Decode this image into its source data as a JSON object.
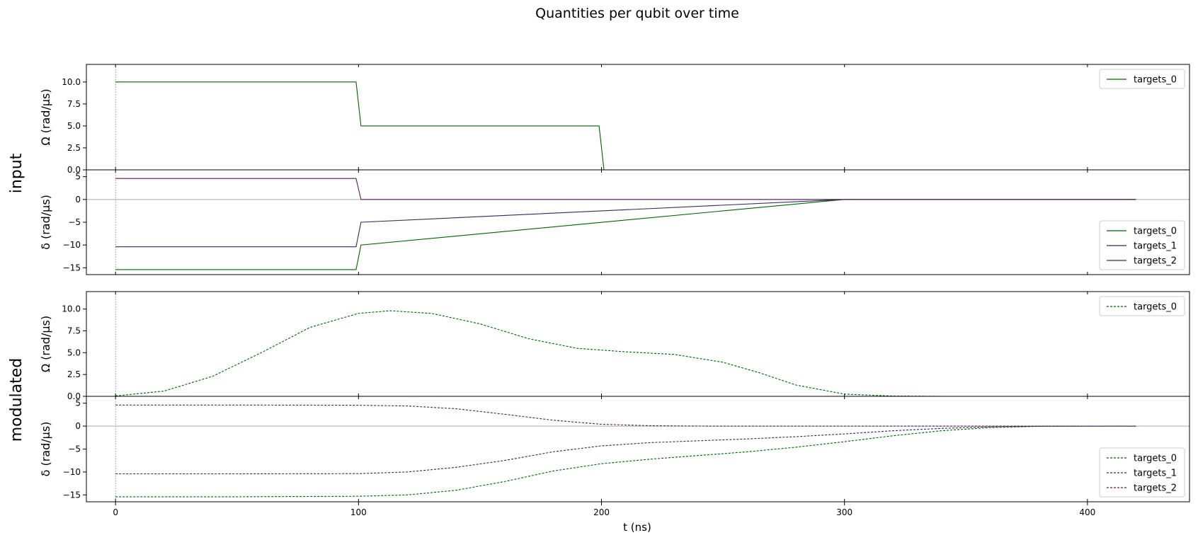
{
  "title": "Quantities per qubit over time",
  "xlabel": "t (ns)",
  "colors": {
    "targets_0": "#006400",
    "targets_1": "#2e2b5f",
    "targets_2": "#5c1a5c"
  },
  "groups": [
    {
      "label": "input"
    },
    {
      "label": "modulated"
    }
  ],
  "chart_data": [
    {
      "type": "line",
      "group": "input",
      "ylabel": "Ω (rad/µs)",
      "xlim": [
        -12,
        442
      ],
      "ylim": [
        0,
        12
      ],
      "yticks": [
        0,
        2.5,
        5,
        7.5,
        10
      ],
      "ytick_labels": [
        "0.0",
        "2.5",
        "5.0",
        "7.5",
        "10.0"
      ],
      "xticks": [
        0,
        100,
        200,
        300,
        400
      ],
      "dashed": false,
      "legend": "upper-right",
      "series": [
        {
          "name": "targets_0",
          "color": "#006400",
          "x": [
            0,
            99,
            101,
            199,
            201,
            420
          ],
          "y": [
            10,
            10,
            5,
            5,
            0,
            0
          ]
        }
      ]
    },
    {
      "type": "line",
      "group": "input",
      "ylabel": "δ (rad/µs)",
      "xlim": [
        -12,
        442
      ],
      "ylim": [
        -16.5,
        6.5
      ],
      "yticks": [
        -15,
        -10,
        -5,
        0,
        5
      ],
      "ytick_labels": [
        "−15",
        "−10",
        "−5",
        "0",
        "5"
      ],
      "xticks": [
        0,
        100,
        200,
        300,
        400
      ],
      "dashed": false,
      "legend": "lower-right",
      "series": [
        {
          "name": "targets_0",
          "color": "#006400",
          "x": [
            0,
            99,
            101,
            300,
            420
          ],
          "y": [
            -15.4,
            -15.4,
            -10,
            0,
            0
          ]
        },
        {
          "name": "targets_1",
          "color": "#2e2b5f",
          "x": [
            0,
            99,
            101,
            300,
            420
          ],
          "y": [
            -10.4,
            -10.4,
            -5,
            0,
            0
          ]
        },
        {
          "name": "targets_2",
          "color": "#5c1a5c",
          "x": [
            0,
            99,
            101,
            420
          ],
          "y": [
            4.6,
            4.6,
            0,
            0
          ]
        }
      ]
    },
    {
      "type": "line",
      "group": "modulated",
      "ylabel": "Ω (rad/µs)",
      "xlim": [
        -12,
        442
      ],
      "ylim": [
        0,
        12
      ],
      "yticks": [
        0,
        2.5,
        5,
        7.5,
        10
      ],
      "ytick_labels": [
        "0.0",
        "2.5",
        "5.0",
        "7.5",
        "10.0"
      ],
      "xticks": [
        0,
        100,
        200,
        300,
        400
      ],
      "dashed": true,
      "legend": "upper-right",
      "series": [
        {
          "name": "targets_0",
          "color": "#006400",
          "x": [
            0,
            20,
            40,
            60,
            80,
            100,
            113,
            130,
            150,
            170,
            190,
            210,
            230,
            250,
            265,
            280,
            300,
            320,
            340,
            360,
            380,
            400,
            420
          ],
          "y": [
            0.05,
            0.6,
            2.3,
            5.0,
            7.9,
            9.5,
            9.8,
            9.5,
            8.3,
            6.6,
            5.5,
            5.1,
            4.8,
            3.9,
            2.7,
            1.3,
            0.25,
            0.03,
            0,
            0,
            0,
            0,
            0
          ]
        }
      ]
    },
    {
      "type": "line",
      "group": "modulated",
      "ylabel": "δ (rad/µs)",
      "xlim": [
        -12,
        442
      ],
      "ylim": [
        -16.5,
        6.5
      ],
      "yticks": [
        -15,
        -10,
        -5,
        0,
        5
      ],
      "ytick_labels": [
        "−15",
        "−10",
        "−5",
        "0",
        "5"
      ],
      "xticks": [
        0,
        100,
        200,
        300,
        400
      ],
      "dashed": true,
      "legend": "lower-right",
      "series": [
        {
          "name": "targets_0",
          "color": "#006400",
          "x": [
            0,
            50,
            100,
            120,
            140,
            160,
            180,
            200,
            220,
            240,
            260,
            280,
            300,
            320,
            340,
            360,
            380,
            400,
            420
          ],
          "y": [
            -15.4,
            -15.4,
            -15.3,
            -15.0,
            -14.0,
            -12.1,
            -9.8,
            -8.2,
            -7.2,
            -6.4,
            -5.6,
            -4.6,
            -3.4,
            -2.1,
            -1.0,
            -0.3,
            -0.05,
            0,
            0
          ]
        },
        {
          "name": "targets_1",
          "color": "#2e2b5f",
          "x": [
            0,
            50,
            100,
            120,
            140,
            160,
            180,
            200,
            220,
            240,
            260,
            280,
            300,
            320,
            340,
            360,
            380,
            400,
            420
          ],
          "y": [
            -10.4,
            -10.4,
            -10.35,
            -10.0,
            -9.0,
            -7.5,
            -5.6,
            -4.3,
            -3.6,
            -3.2,
            -2.8,
            -2.3,
            -1.7,
            -1.0,
            -0.5,
            -0.15,
            -0.03,
            0,
            0
          ]
        },
        {
          "name": "targets_2",
          "color": "#5c1a5c",
          "x": [
            0,
            50,
            100,
            120,
            140,
            160,
            180,
            200,
            220,
            240,
            260,
            300,
            350,
            420
          ],
          "y": [
            4.6,
            4.6,
            4.55,
            4.4,
            3.8,
            2.6,
            1.3,
            0.4,
            0.1,
            0.02,
            0,
            0,
            0,
            0
          ]
        }
      ]
    }
  ]
}
